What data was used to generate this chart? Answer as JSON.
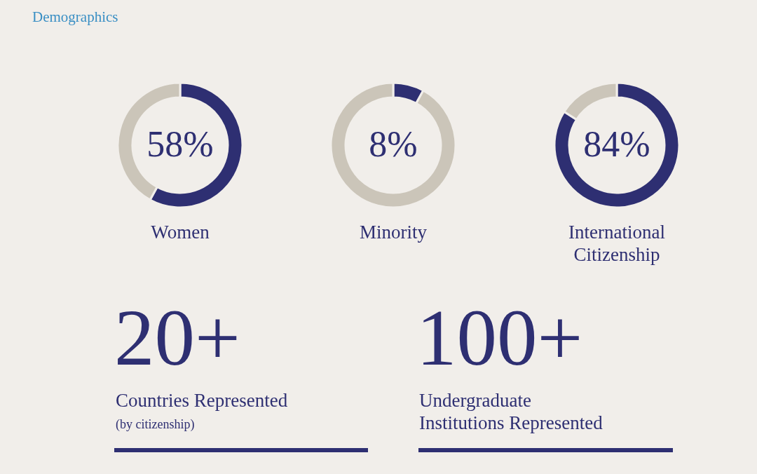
{
  "chart_data": [
    {
      "type": "other",
      "title": "Demographics"
    },
    {
      "type": "donut",
      "categories": [
        null,
        null
      ],
      "values": [
        58,
        42
      ],
      "colors": [
        "#2e2f72",
        "#cbc5b9"
      ],
      "value_labels": [
        "58%",
        null
      ],
      "xlabel": "Women"
    },
    {
      "type": "donut",
      "categories": [
        null,
        null
      ],
      "values": [
        8,
        92
      ],
      "colors": [
        "#2e2f72",
        "#cbc5b9"
      ],
      "value_labels": [
        "8%",
        null
      ],
      "xlabel": "Minority"
    },
    {
      "type": "donut",
      "categories": [
        null,
        null
      ],
      "values": [
        84,
        16
      ],
      "colors": [
        "#2e2f72",
        "#cbc5b9"
      ],
      "value_labels": [
        "84%",
        null
      ],
      "xlabel": "International Citizenship"
    },
    {
      "type": "other",
      "annotations": [
        "20+",
        "Countries Represented",
        "(by citizenship)",
        "100+",
        "Undergraduate Institutions Represented"
      ]
    }
  ]
}
